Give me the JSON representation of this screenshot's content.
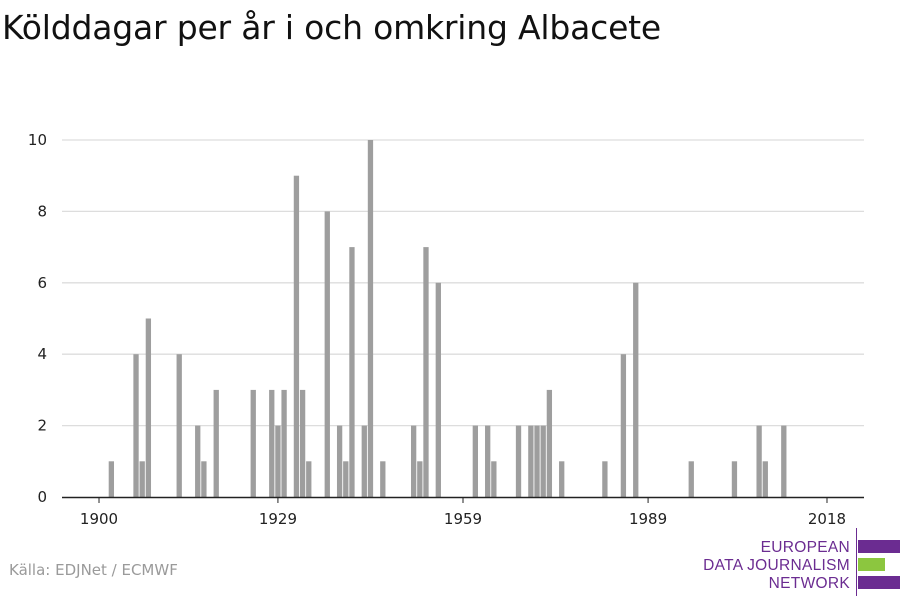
{
  "title": "Kölddagar per år i och omkring Albacete",
  "source": "Källa: EDJNet / ECMWF",
  "logo": {
    "lines": [
      "EUROPEAN",
      "DATA JOURNALISM",
      "NETWORK"
    ],
    "colors": {
      "purple": "#6b2c91",
      "green": "#8cc63f"
    }
  },
  "colors": {
    "bar": "#9e9e9e",
    "grid": "#dddddd",
    "axis": "#222222"
  },
  "chart_data": {
    "type": "bar",
    "x_tick_labels": [
      "1900",
      "1929",
      "1959",
      "1989",
      "2018"
    ],
    "y_ticks": [
      0,
      2,
      4,
      6,
      8,
      10
    ],
    "xlim": [
      1894,
      2024
    ],
    "ylim": [
      0,
      10
    ],
    "grid": true,
    "x": [
      1902,
      1906,
      1907,
      1908,
      1913,
      1916,
      1917,
      1919,
      1925,
      1928,
      1929,
      1930,
      1932,
      1933,
      1934,
      1937,
      1939,
      1940,
      1941,
      1943,
      1944,
      1946,
      1951,
      1952,
      1953,
      1955,
      1961,
      1963,
      1964,
      1968,
      1970,
      1971,
      1972,
      1973,
      1975,
      1982,
      1985,
      1987,
      1996,
      2003,
      2007,
      2008,
      2011
    ],
    "values": [
      1,
      4,
      1,
      5,
      4,
      2,
      1,
      3,
      3,
      3,
      2,
      3,
      9,
      3,
      1,
      8,
      2,
      1,
      7,
      2,
      10,
      1,
      2,
      1,
      7,
      6,
      2,
      2,
      1,
      2,
      2,
      2,
      2,
      3,
      1,
      1,
      4,
      6,
      1,
      1,
      2,
      1,
      2
    ]
  }
}
